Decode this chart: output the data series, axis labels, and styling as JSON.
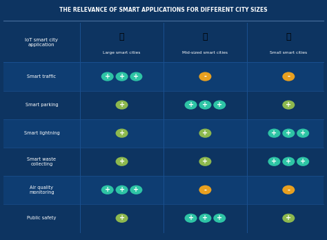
{
  "title": "THE RELEVANCE OF SMART APPLICATIONS FOR DIFFERENT CITY SIZES",
  "bg_color": "#0d3461",
  "row_color_alt": "#0e3d72",
  "row_color_main": "#0d3461",
  "grid_line_color": "#1a5090",
  "title_color": "#ffffff",
  "cell_text_color": "#ffffff",
  "header_color": "#ffffff",
  "col_headers": [
    "Large smart cities",
    "Mid-sized smart cities",
    "Small smart cities"
  ],
  "first_col_label": "IoT smart city\napplication",
  "plus_color_green": "#2ec4a5",
  "plus_color_olive": "#8db84e",
  "minus_color_orange": "#e8a020",
  "icon_white": "#ffffff",
  "table_data": [
    {
      "row": "Smart traffic",
      "Large": {
        "sign": "+",
        "count": 3,
        "color": "green"
      },
      "Mid": {
        "sign": "-",
        "count": 1,
        "color": "orange"
      },
      "Small": {
        "sign": "-",
        "count": 1,
        "color": "orange"
      }
    },
    {
      "row": "Smart parking",
      "Large": {
        "sign": "+",
        "count": 1,
        "color": "olive"
      },
      "Mid": {
        "sign": "+",
        "count": 3,
        "color": "green"
      },
      "Small": {
        "sign": "+",
        "count": 1,
        "color": "olive"
      }
    },
    {
      "row": "Smart lightning",
      "Large": {
        "sign": "+",
        "count": 1,
        "color": "olive"
      },
      "Mid": {
        "sign": "+",
        "count": 1,
        "color": "olive"
      },
      "Small": {
        "sign": "+",
        "count": 3,
        "color": "green"
      }
    },
    {
      "row": "Smart waste\ncollecting",
      "Large": {
        "sign": "+",
        "count": 1,
        "color": "olive"
      },
      "Mid": {
        "sign": "+",
        "count": 1,
        "color": "olive"
      },
      "Small": {
        "sign": "+",
        "count": 3,
        "color": "green"
      }
    },
    {
      "row": "Air quality\nmonitoring",
      "Large": {
        "sign": "+",
        "count": 3,
        "color": "green"
      },
      "Mid": {
        "sign": "-",
        "count": 1,
        "color": "orange"
      },
      "Small": {
        "sign": "-",
        "count": 1,
        "color": "orange"
      }
    },
    {
      "row": "Public safety",
      "Large": {
        "sign": "+",
        "count": 1,
        "color": "olive"
      },
      "Mid": {
        "sign": "+",
        "count": 3,
        "color": "green"
      },
      "Small": {
        "sign": "+",
        "count": 1,
        "color": "olive"
      }
    }
  ]
}
